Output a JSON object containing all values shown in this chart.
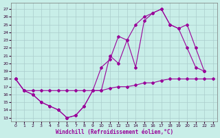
{
  "xlabel": "Windchill (Refroidissement éolien,°C)",
  "bg_color": "#c8eee8",
  "line_color": "#990099",
  "grid_color": "#aacccc",
  "x_ticks": [
    0,
    1,
    2,
    3,
    4,
    5,
    6,
    7,
    8,
    9,
    10,
    11,
    12,
    13,
    14,
    15,
    16,
    17,
    18,
    19,
    20,
    21,
    22,
    23
  ],
  "y_ticks": [
    13,
    14,
    15,
    16,
    17,
    18,
    19,
    20,
    21,
    22,
    23,
    24,
    25,
    26,
    27
  ],
  "ylim": [
    12.5,
    27.8
  ],
  "xlim": [
    -0.5,
    23.5
  ],
  "series1": {
    "x": [
      0,
      1,
      2,
      3,
      4,
      5,
      6,
      7,
      8,
      9,
      10,
      11,
      12,
      13,
      14,
      15,
      16,
      17,
      18,
      19,
      20,
      21,
      22
    ],
    "y": [
      18,
      16.5,
      16,
      15,
      14.5,
      14,
      13,
      13.3,
      14.5,
      16.5,
      19.5,
      20.5,
      23.5,
      23,
      19.5,
      25.5,
      26.5,
      27,
      25,
      24.5,
      22,
      19.5,
      19
    ]
  },
  "series2": {
    "x": [
      0,
      1,
      2,
      3,
      4,
      5,
      6,
      7,
      8,
      9,
      10,
      11,
      12,
      13,
      14,
      15,
      16,
      17,
      18,
      19,
      20,
      21,
      22,
      23
    ],
    "y": [
      18,
      16.5,
      16.5,
      16.5,
      16.5,
      16.5,
      16.5,
      16.5,
      16.5,
      16.5,
      16.5,
      16.8,
      17,
      17,
      17.2,
      17.5,
      17.5,
      17.8,
      18,
      18,
      18,
      18,
      18,
      18
    ]
  },
  "series3": {
    "x": [
      0,
      1,
      2,
      3,
      4,
      5,
      6,
      7,
      8,
      9,
      10,
      11,
      12,
      13,
      14,
      15,
      16,
      17,
      18,
      19,
      20,
      21,
      22
    ],
    "y": [
      18,
      16.5,
      16,
      15,
      14.5,
      14,
      13,
      13.3,
      14.5,
      16.5,
      16.5,
      21,
      20,
      23,
      25,
      26,
      26.5,
      27,
      25,
      24.5,
      25,
      22,
      19
    ]
  }
}
